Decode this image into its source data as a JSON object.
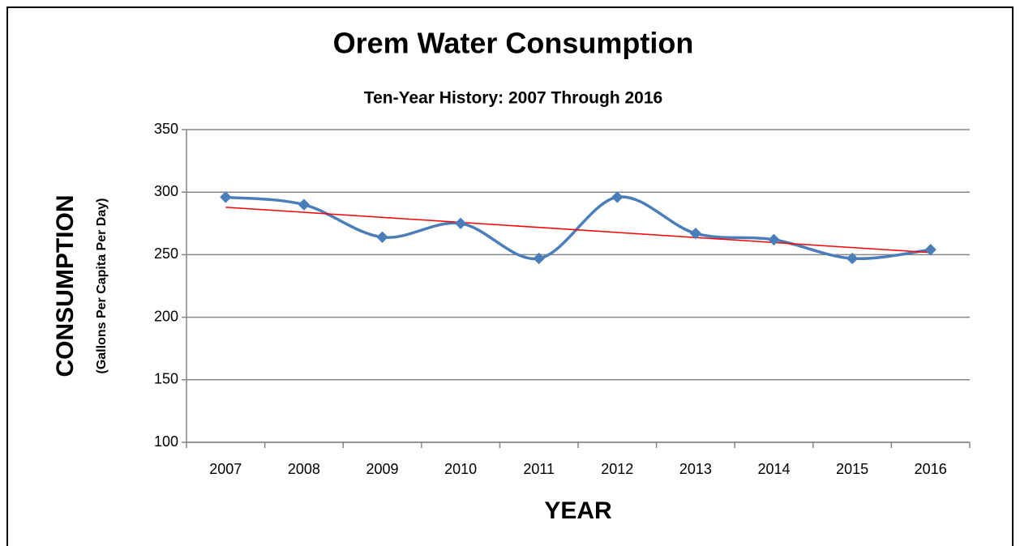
{
  "chart_data": {
    "type": "line",
    "title": "Orem Water Consumption",
    "subtitle": "Ten-Year History: 2007 Through 2016",
    "y_label": "CONSUMPTION",
    "y_sublabel": "(Gallons Per Capita Per Day)",
    "x_label": "YEAR",
    "categories": [
      "2007",
      "2008",
      "2009",
      "2010",
      "2011",
      "2012",
      "2013",
      "2014",
      "2015",
      "2016"
    ],
    "values": [
      296,
      290,
      264,
      275,
      247,
      296,
      267,
      262,
      247,
      254
    ],
    "color": "#4a7ebb",
    "smooth": true,
    "marker": "diamond",
    "trendline": true,
    "trendline_color": "#ff0000",
    "ylim": [
      100,
      350
    ],
    "yticks": [
      100,
      150,
      200,
      250,
      300,
      350
    ],
    "grid": true
  }
}
